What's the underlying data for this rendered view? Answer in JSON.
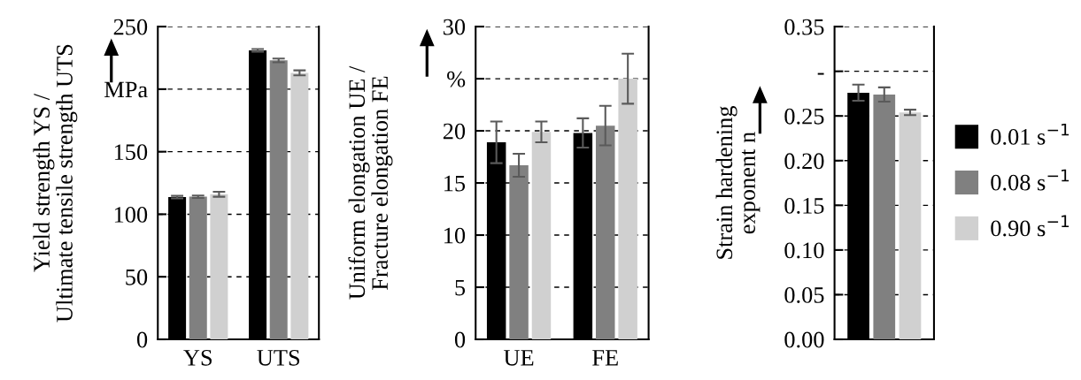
{
  "chart_data": [
    {
      "type": "bar",
      "ylabel": "Yield strength YS /\nUltimate tensile strength UTS",
      "categories": [
        "YS",
        "UTS"
      ],
      "ylim": [
        0,
        250
      ],
      "yticks": [
        0,
        50,
        100,
        150,
        {
          "value": 200,
          "label": "MPa"
        },
        250
      ],
      "grid": "y",
      "legend": false,
      "series": [
        {
          "color": "#000000",
          "values": [
            113.7,
            231
          ],
          "errors": [
            1,
            1
          ]
        },
        {
          "color": "#808080",
          "values": [
            114,
            223
          ],
          "errors": [
            1,
            1.5
          ]
        },
        {
          "color": "#d0d0d0",
          "values": [
            116,
            213
          ],
          "errors": [
            2,
            2
          ]
        }
      ]
    },
    {
      "type": "bar",
      "ylabel": "Uniform elongation UE /\nFracture elongation FE",
      "categories": [
        "UE",
        "FE"
      ],
      "ylim": [
        0,
        30
      ],
      "yticks": [
        0,
        5,
        10,
        15,
        20,
        {
          "value": 25,
          "label": "%"
        },
        30
      ],
      "grid": "y",
      "legend": false,
      "series": [
        {
          "color": "#000000",
          "values": [
            18.9,
            19.8
          ],
          "errors": [
            2.0,
            1.4
          ]
        },
        {
          "color": "#808080",
          "values": [
            16.7,
            20.5
          ],
          "errors": [
            1.1,
            1.9
          ]
        },
        {
          "color": "#d0d0d0",
          "values": [
            19.9,
            25.0
          ],
          "errors": [
            1.0,
            2.4
          ]
        }
      ]
    },
    {
      "type": "bar",
      "ylabel": "Strain hardening\nexponent n",
      "categories": [
        null
      ],
      "ylim": [
        0,
        0.35
      ],
      "yticks": [
        {
          "value": 0,
          "label": "0.00"
        },
        {
          "value": 0.05,
          "label": "0.05"
        },
        {
          "value": 0.1,
          "label": "0.10"
        },
        {
          "value": 0.15,
          "label": "0.15"
        },
        {
          "value": 0.2,
          "label": "0.20"
        },
        {
          "value": 0.25,
          "label": "0.25"
        },
        {
          "value": 0.3,
          "label": "-"
        },
        {
          "value": 0.35,
          "label": "0.35"
        }
      ],
      "grid": "y",
      "legend": "right",
      "series": [
        {
          "name": "0.01 s$^{−1}$",
          "color": "#000000",
          "values": [
            0.276
          ],
          "errors": [
            0.009
          ]
        },
        {
          "name": "0.08 s$^{−1}$",
          "color": "#808080",
          "values": [
            0.274
          ],
          "errors": [
            0.008
          ]
        },
        {
          "name": "0.90 s$^{−1}$",
          "color": "#d0d0d0",
          "values": [
            0.254
          ],
          "errors": [
            0.003
          ]
        }
      ]
    }
  ]
}
